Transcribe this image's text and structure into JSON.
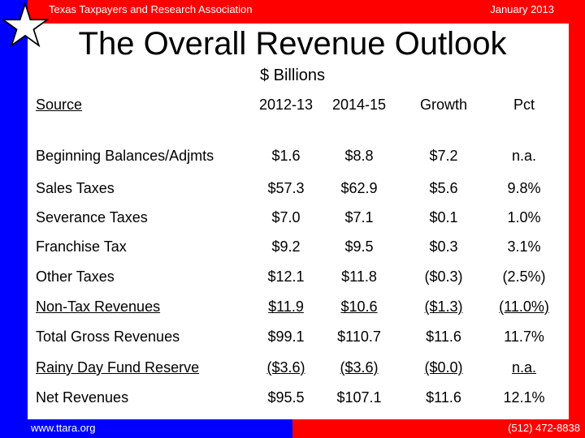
{
  "header": {
    "org": "Texas Taxpayers and Research Association",
    "date": "January 2013"
  },
  "title": "The Overall Revenue Outlook",
  "subtitle": "$ Billions",
  "footer": {
    "website": "www.ttara.org",
    "phone": "(512) 472-8838"
  },
  "colors": {
    "blue": "#0000ff",
    "red": "#ff0000",
    "white": "#ffffff"
  },
  "table": {
    "columns": [
      "Source",
      "2012-13",
      "2014-15",
      "Growth",
      "Pct"
    ],
    "rows": [
      [
        "Beginning Balances/Adjmts",
        "$1.6",
        "$8.8",
        "$7.2",
        "n.a."
      ],
      [
        "Sales Taxes",
        "$57.3",
        "$62.9",
        "$5.6",
        "9.8%"
      ],
      [
        "Severance Taxes",
        "$7.0",
        "$7.1",
        "$0.1",
        "1.0%"
      ],
      [
        "Franchise Tax",
        "$9.2",
        "$9.5",
        "$0.3",
        "3.1%"
      ],
      [
        "Other Taxes",
        "$12.1",
        "$11.8",
        "($0.3)",
        "(2.5%)"
      ],
      [
        "Non-Tax Revenues",
        "$11.9",
        "$10.6",
        "($1.3)",
        "(11.0%)"
      ],
      [
        "Total Gross Revenues",
        "$99.1",
        "$110.7",
        "$11.6",
        "11.7%"
      ],
      [
        "Rainy Day Fund Reserve",
        "($3.6)",
        "($3.6)",
        "($0.0)",
        "n.a."
      ],
      [
        "Net Revenues",
        "$95.5",
        "$107.1",
        "$11.6",
        "12.1%"
      ]
    ]
  }
}
